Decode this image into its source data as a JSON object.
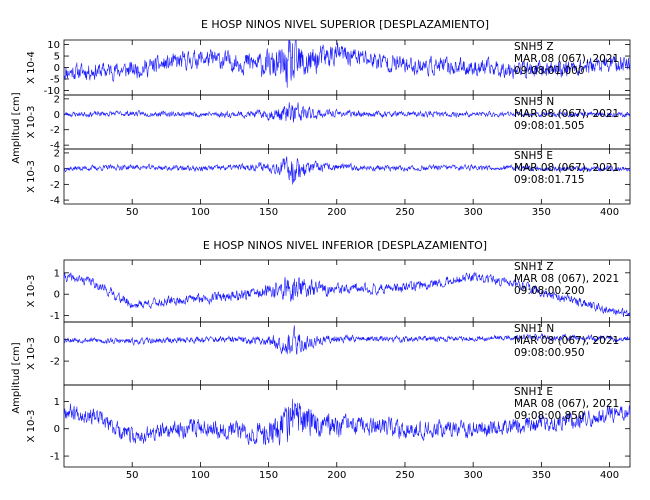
{
  "chart_data": [
    {
      "type": "line",
      "title": "E HOSP NINOS NIVEL SUPERIOR [DESPLAZAMIENTO]",
      "ylabel": "Amplitud [cm]",
      "xlim": [
        0,
        415
      ],
      "xticks": [
        50,
        100,
        150,
        200,
        250,
        300,
        350,
        400
      ],
      "series": [
        {
          "name": "SNH5 Z",
          "station": "SNH5 Z",
          "date": "MAR 08 (067), 2021",
          "time": "09:08:01.000",
          "scale_label": "X 10-4",
          "ylim": [
            -12,
            12
          ],
          "yticks": [
            10,
            5,
            0,
            -5,
            -10
          ],
          "amp": 5.5,
          "burst": 2.0,
          "seed": 11,
          "x": [
            0,
            50,
            100,
            150,
            168,
            200,
            250,
            300,
            350,
            415
          ],
          "y": [
            -2,
            -1,
            4,
            1,
            0,
            6,
            1,
            0,
            -1,
            2
          ]
        },
        {
          "name": "SNH5 N",
          "station": "SNH5 N",
          "date": "MAR 08 (067), 2021",
          "time": "09:08:01.505",
          "scale_label": "X 10-3",
          "ylim": [
            -4.5,
            2.5
          ],
          "yticks": [
            2,
            0,
            -2,
            -4
          ],
          "amp": 0.5,
          "burst": 4.5,
          "seed": 23,
          "x": [
            0,
            50,
            100,
            150,
            168,
            200,
            250,
            300,
            350,
            415
          ],
          "y": [
            0,
            0.1,
            0,
            0,
            0,
            0.1,
            0,
            0,
            0,
            0
          ]
        },
        {
          "name": "SNH5 E",
          "station": "SNH5 E",
          "date": "MAR 08 (067), 2021",
          "time": "09:08:01.715",
          "scale_label": "X 10-3",
          "ylim": [
            -4.5,
            2.5
          ],
          "yticks": [
            2,
            0,
            -2,
            -4
          ],
          "amp": 0.5,
          "burst": 4.5,
          "seed": 37,
          "x": [
            0,
            50,
            100,
            150,
            168,
            200,
            250,
            300,
            350,
            415
          ],
          "y": [
            0,
            0.2,
            0,
            0.3,
            0,
            0.2,
            0,
            0.2,
            0,
            0
          ]
        }
      ]
    },
    {
      "type": "line",
      "title": "E HOSP NINOS NIVEL INFERIOR [DESPLAZAMIENTO]",
      "ylabel": "Amplitud [cm]",
      "xlim": [
        0,
        415
      ],
      "xticks": [
        50,
        100,
        150,
        200,
        250,
        300,
        350,
        400
      ],
      "series": [
        {
          "name": "SNH1 Z",
          "station": "SNH1 Z",
          "date": "MAR 08 (067), 2021",
          "time": "09:08:00.200",
          "scale_label": "X 10-3",
          "ylim": [
            -1.3,
            1.6
          ],
          "yticks": [
            1,
            0,
            -1
          ],
          "amp": 0.32,
          "burst": 1.6,
          "seed": 41,
          "x": [
            0,
            20,
            50,
            100,
            150,
            168,
            200,
            250,
            300,
            330,
            350,
            380,
            415
          ],
          "y": [
            0.8,
            0.6,
            -0.5,
            -0.2,
            0.1,
            0.3,
            0.2,
            0.3,
            0.8,
            0.5,
            0.1,
            -0.4,
            -1.0
          ]
        },
        {
          "name": "SNH1 N",
          "station": "SNH1 N",
          "date": "MAR 08 (067), 2021",
          "time": "09:08:00.950",
          "scale_label": "X 10-3",
          "ylim": [
            -4.2,
            1.6
          ],
          "yticks": [
            0,
            -2
          ],
          "amp": 0.4,
          "burst": 4.0,
          "seed": 53,
          "x": [
            0,
            50,
            100,
            150,
            168,
            200,
            250,
            300,
            350,
            415
          ],
          "y": [
            0,
            -0.2,
            0,
            -0.1,
            -0.5,
            0.1,
            0,
            0.1,
            0.2,
            0
          ]
        },
        {
          "name": "SNH1 E",
          "station": "SNH1 E",
          "date": "MAR 08 (067), 2021",
          "time": "09:08:00.850",
          "scale_label": "X 10-3",
          "ylim": [
            -1.4,
            1.6
          ],
          "yticks": [
            1,
            0,
            -1
          ],
          "amp": 0.45,
          "burst": 1.4,
          "seed": 67,
          "x": [
            0,
            20,
            50,
            100,
            150,
            168,
            200,
            250,
            300,
            350,
            415
          ],
          "y": [
            0.7,
            0.5,
            -0.3,
            0.1,
            -0.2,
            0.4,
            0.1,
            0,
            0,
            0.2,
            0.6
          ]
        }
      ]
    }
  ]
}
